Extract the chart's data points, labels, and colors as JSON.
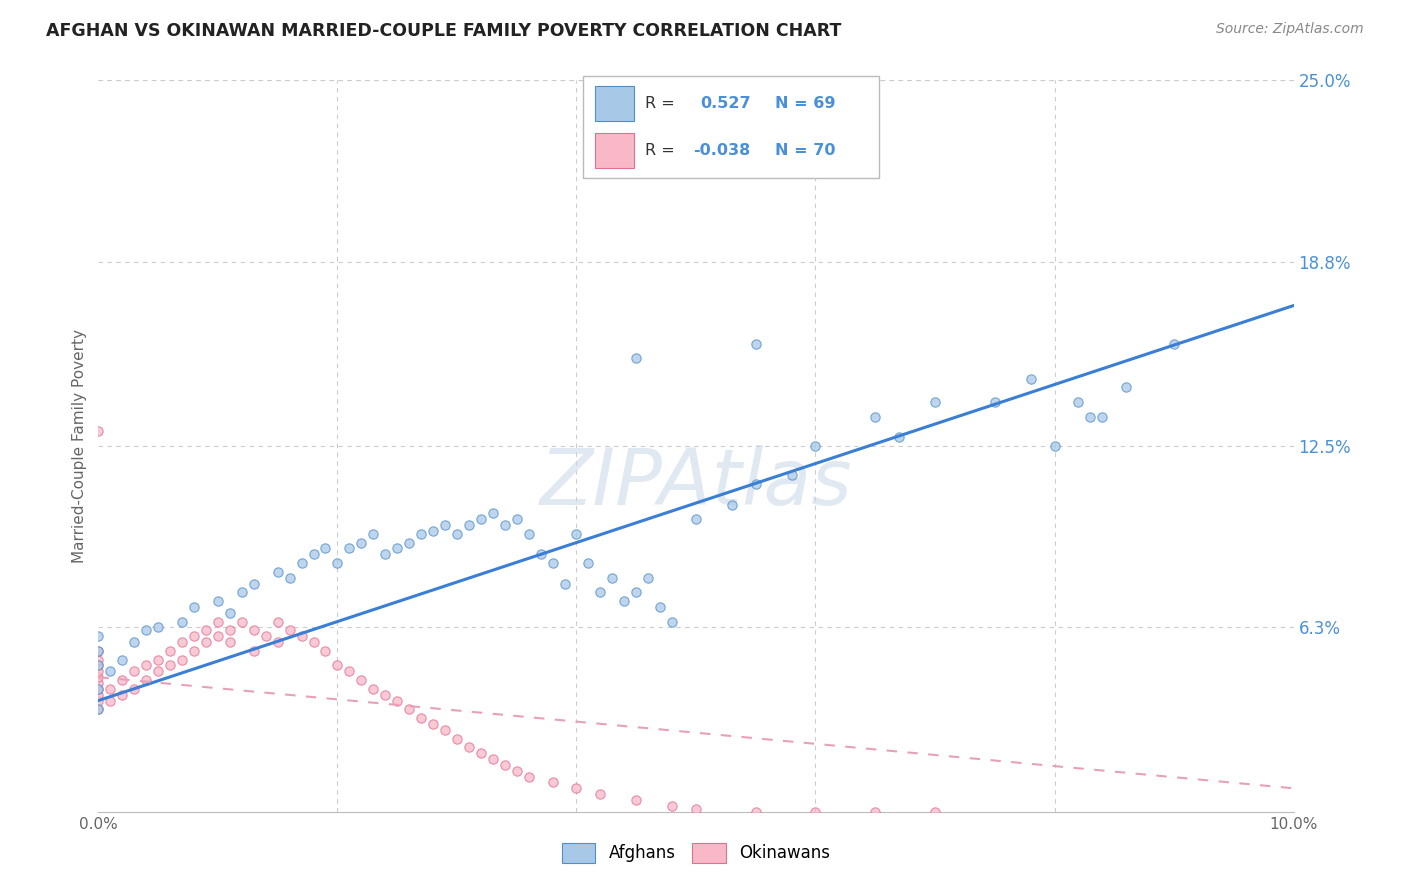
{
  "title": "AFGHAN VS OKINAWAN MARRIED-COUPLE FAMILY POVERTY CORRELATION CHART",
  "source": "Source: ZipAtlas.com",
  "ylabel": "Married-Couple Family Poverty",
  "xlim": [
    0,
    0.1
  ],
  "ylim": [
    0,
    0.25
  ],
  "ytick_labels_right": [
    "6.3%",
    "12.5%",
    "18.8%",
    "25.0%"
  ],
  "ytick_vals_right": [
    0.063,
    0.125,
    0.188,
    0.25
  ],
  "afghan_fill_color": "#a8c8e8",
  "afghan_edge_color": "#5090c8",
  "okinawan_fill_color": "#f8b8c8",
  "okinawan_edge_color": "#e07090",
  "afghan_line_color": "#3a7fd5",
  "okinawan_line_color": "#e8a0b8",
  "R_afghan": 0.527,
  "N_afghan": 69,
  "R_okinawan": -0.038,
  "N_okinawan": 70,
  "watermark": "ZIPAtlas",
  "watermark_color": "#c8d8e8",
  "grid_color": "#cccccc",
  "title_color": "#222222",
  "axis_label_color": "#4a90d9",
  "ylabel_color": "#666666",
  "scatter_alpha": 0.75,
  "scatter_size": 45,
  "afghan_line_y0": 0.038,
  "afghan_line_y1": 0.173,
  "okinawan_line_y0": 0.046,
  "okinawan_line_y1": 0.008,
  "afghan_x": [
    0.0,
    0.0,
    0.0,
    0.0,
    0.0,
    0.001,
    0.002,
    0.003,
    0.004,
    0.005,
    0.007,
    0.008,
    0.01,
    0.011,
    0.012,
    0.013,
    0.015,
    0.016,
    0.017,
    0.018,
    0.019,
    0.02,
    0.021,
    0.022,
    0.023,
    0.024,
    0.025,
    0.026,
    0.027,
    0.028,
    0.029,
    0.03,
    0.031,
    0.032,
    0.033,
    0.034,
    0.035,
    0.036,
    0.037,
    0.038,
    0.039,
    0.04,
    0.041,
    0.042,
    0.043,
    0.044,
    0.045,
    0.046,
    0.047,
    0.048,
    0.05,
    0.053,
    0.055,
    0.058,
    0.06,
    0.065,
    0.067,
    0.07,
    0.075,
    0.078,
    0.08,
    0.082,
    0.084,
    0.086,
    0.09,
    0.083,
    0.045,
    0.055,
    0.062
  ],
  "afghan_y": [
    0.035,
    0.042,
    0.05,
    0.055,
    0.06,
    0.048,
    0.052,
    0.058,
    0.062,
    0.063,
    0.065,
    0.07,
    0.072,
    0.068,
    0.075,
    0.078,
    0.082,
    0.08,
    0.085,
    0.088,
    0.09,
    0.085,
    0.09,
    0.092,
    0.095,
    0.088,
    0.09,
    0.092,
    0.095,
    0.096,
    0.098,
    0.095,
    0.098,
    0.1,
    0.102,
    0.098,
    0.1,
    0.095,
    0.088,
    0.085,
    0.078,
    0.095,
    0.085,
    0.075,
    0.08,
    0.072,
    0.075,
    0.08,
    0.07,
    0.065,
    0.1,
    0.105,
    0.112,
    0.115,
    0.125,
    0.135,
    0.128,
    0.14,
    0.14,
    0.148,
    0.125,
    0.14,
    0.135,
    0.145,
    0.16,
    0.135,
    0.155,
    0.16,
    0.22
  ],
  "okinawan_x": [
    0.0,
    0.0,
    0.0,
    0.0,
    0.0,
    0.0,
    0.0,
    0.0,
    0.0,
    0.0,
    0.001,
    0.001,
    0.002,
    0.002,
    0.003,
    0.003,
    0.004,
    0.004,
    0.005,
    0.005,
    0.006,
    0.006,
    0.007,
    0.007,
    0.008,
    0.008,
    0.009,
    0.009,
    0.01,
    0.01,
    0.011,
    0.011,
    0.012,
    0.013,
    0.014,
    0.015,
    0.015,
    0.016,
    0.017,
    0.018,
    0.019,
    0.02,
    0.021,
    0.022,
    0.023,
    0.024,
    0.025,
    0.026,
    0.027,
    0.028,
    0.029,
    0.03,
    0.031,
    0.032,
    0.033,
    0.034,
    0.035,
    0.036,
    0.038,
    0.04,
    0.042,
    0.045,
    0.048,
    0.05,
    0.055,
    0.06,
    0.065,
    0.07,
    0.0,
    0.013
  ],
  "okinawan_y": [
    0.035,
    0.038,
    0.04,
    0.042,
    0.044,
    0.046,
    0.048,
    0.05,
    0.052,
    0.055,
    0.038,
    0.042,
    0.04,
    0.045,
    0.042,
    0.048,
    0.045,
    0.05,
    0.048,
    0.052,
    0.05,
    0.055,
    0.052,
    0.058,
    0.055,
    0.06,
    0.058,
    0.062,
    0.06,
    0.065,
    0.058,
    0.062,
    0.065,
    0.062,
    0.06,
    0.065,
    0.058,
    0.062,
    0.06,
    0.058,
    0.055,
    0.05,
    0.048,
    0.045,
    0.042,
    0.04,
    0.038,
    0.035,
    0.032,
    0.03,
    0.028,
    0.025,
    0.022,
    0.02,
    0.018,
    0.016,
    0.014,
    0.012,
    0.01,
    0.008,
    0.006,
    0.004,
    0.002,
    0.001,
    0.0,
    0.0,
    0.0,
    0.0,
    0.13,
    0.055
  ]
}
